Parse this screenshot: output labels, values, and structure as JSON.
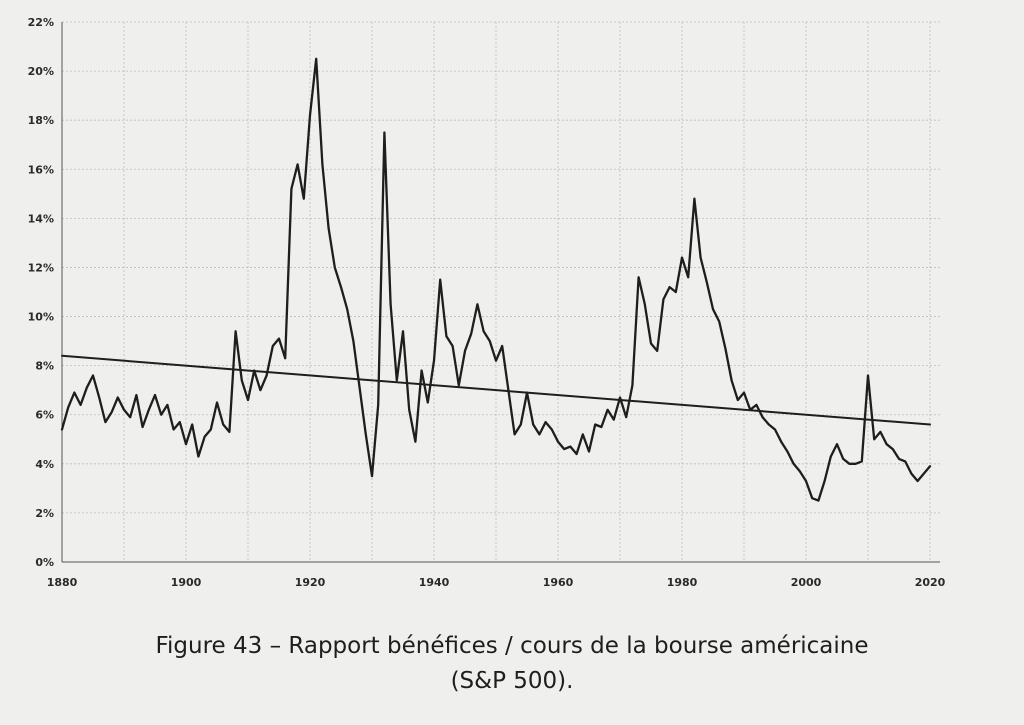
{
  "caption": {
    "line1": "Figure 43 – Rapport bénéfices / cours de la bourse américaine",
    "line2": "(S&P 500)."
  },
  "colors": {
    "line": "#1e1e1e",
    "grid": "#bdbdbd",
    "axis": "#555555",
    "background": "#efefed"
  },
  "chart_data": {
    "type": "line",
    "title": "",
    "xlabel": "",
    "ylabel": "",
    "xlim": [
      1880,
      2020
    ],
    "ylim": [
      0,
      22
    ],
    "x_ticks": [
      1880,
      1900,
      1920,
      1940,
      1960,
      1980,
      2000,
      2020
    ],
    "x_tick_labels": [
      "1880",
      "1900",
      "1920",
      "1940",
      "1960",
      "1980",
      "2000",
      "2020"
    ],
    "y_ticks": [
      0,
      2,
      4,
      6,
      8,
      10,
      12,
      14,
      16,
      18,
      20,
      22
    ],
    "y_tick_labels": [
      "0%",
      "2%",
      "4%",
      "6%",
      "8%",
      "10%",
      "12%",
      "14%",
      "16%",
      "18%",
      "20%",
      "22%"
    ],
    "grid": true,
    "series": [
      {
        "kind": "earnings_yield",
        "x": [
          1880,
          1881,
          1882,
          1883,
          1884,
          1885,
          1886,
          1887,
          1888,
          1889,
          1890,
          1891,
          1892,
          1893,
          1894,
          1895,
          1896,
          1897,
          1898,
          1899,
          1900,
          1901,
          1902,
          1903,
          1904,
          1905,
          1906,
          1907,
          1908,
          1909,
          1910,
          1911,
          1912,
          1913,
          1914,
          1915,
          1916,
          1917,
          1918,
          1919,
          1920,
          1921,
          1922,
          1923,
          1924,
          1925,
          1926,
          1927,
          1928,
          1929,
          1930,
          1931,
          1932,
          1933,
          1934,
          1935,
          1936,
          1937,
          1938,
          1939,
          1940,
          1941,
          1942,
          1943,
          1944,
          1945,
          1946,
          1947,
          1948,
          1949,
          1950,
          1951,
          1952,
          1953,
          1954,
          1955,
          1956,
          1957,
          1958,
          1959,
          1960,
          1961,
          1962,
          1963,
          1964,
          1965,
          1966,
          1967,
          1968,
          1969,
          1970,
          1971,
          1972,
          1973,
          1974,
          1975,
          1976,
          1977,
          1978,
          1979,
          1980,
          1981,
          1982,
          1983,
          1984,
          1985,
          1986,
          1987,
          1988,
          1989,
          1990,
          1991,
          1992,
          1993,
          1994,
          1995,
          1996,
          1997,
          1998,
          1999,
          2000,
          2001,
          2002,
          2003,
          2004,
          2005,
          2006,
          2007,
          2008,
          2009,
          2010,
          2011,
          2012,
          2013,
          2014,
          2015,
          2016,
          2017,
          2018,
          2019,
          2020
        ],
        "y": [
          5.4,
          6.3,
          6.9,
          6.4,
          7.1,
          7.6,
          6.7,
          5.7,
          6.1,
          6.7,
          6.2,
          5.9,
          6.8,
          5.5,
          6.2,
          6.8,
          6.0,
          6.4,
          5.4,
          5.7,
          4.8,
          5.6,
          4.3,
          5.1,
          5.4,
          6.5,
          5.6,
          5.3,
          9.4,
          7.4,
          6.6,
          7.8,
          7.0,
          7.6,
          8.8,
          9.1,
          8.3,
          15.2,
          16.2,
          14.8,
          18.2,
          20.5,
          16.2,
          13.6,
          12.0,
          11.2,
          10.3,
          9.0,
          7.1,
          5.2,
          3.5,
          6.4,
          17.5,
          10.5,
          7.4,
          9.4,
          6.2,
          4.9,
          7.8,
          6.5,
          8.2,
          11.5,
          9.2,
          8.8,
          7.2,
          8.6,
          9.3,
          10.5,
          9.4,
          9.0,
          8.2,
          8.8,
          7.0,
          5.2,
          5.6,
          6.9,
          5.6,
          5.2,
          5.7,
          5.4,
          4.9,
          4.6,
          4.7,
          4.4,
          5.2,
          4.5,
          5.6,
          5.5,
          6.2,
          5.8,
          6.7,
          5.9,
          7.2,
          11.6,
          10.5,
          8.9,
          8.6,
          10.7,
          11.2,
          11.0,
          12.4,
          11.6,
          14.8,
          12.4,
          11.4,
          10.3,
          9.8,
          8.7,
          7.4,
          6.6,
          6.9,
          6.2,
          6.4,
          5.9,
          5.6,
          5.4,
          4.9,
          4.5,
          4.0,
          3.7,
          3.3,
          2.6,
          2.5,
          3.3,
          4.3,
          4.8,
          4.2,
          4.0,
          4.0,
          4.1,
          7.6,
          5.0,
          5.3,
          4.8,
          4.6,
          4.2,
          4.1,
          3.6,
          3.3,
          3.6,
          3.9
        ]
      },
      {
        "kind": "trend",
        "x": [
          1880,
          2020
        ],
        "y": [
          8.4,
          5.6
        ]
      }
    ]
  }
}
